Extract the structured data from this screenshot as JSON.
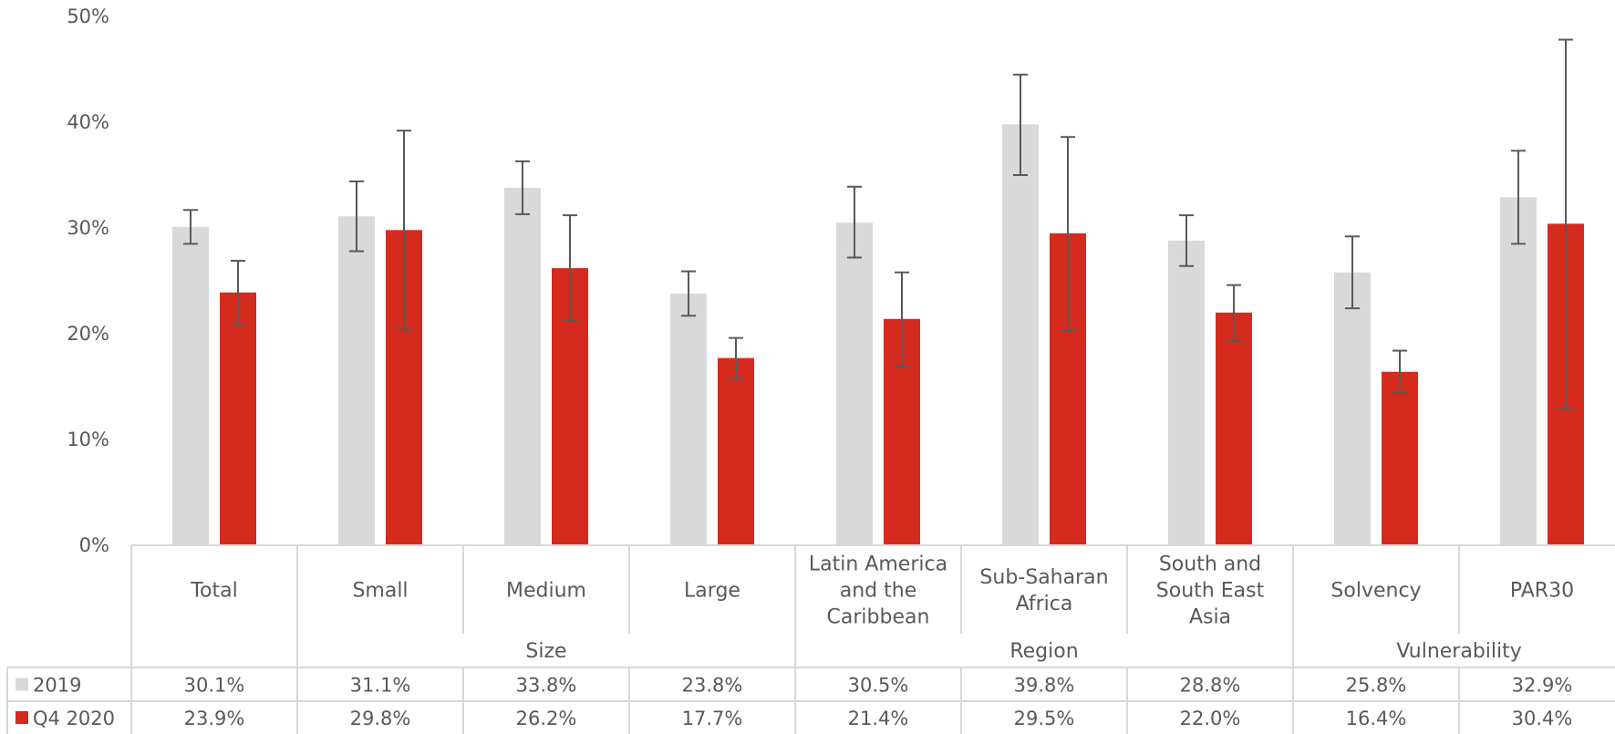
{
  "chart_data": {
    "type": "bar",
    "ylim": [
      0,
      50
    ],
    "yticks": [
      "0%",
      "10%",
      "20%",
      "30%",
      "40%",
      "50%"
    ],
    "categories": [
      [
        "Total"
      ],
      [
        "Small"
      ],
      [
        "Medium"
      ],
      [
        "Large"
      ],
      [
        "Latin America",
        "and the",
        "Caribbean"
      ],
      [
        "Sub-Saharan",
        "Africa"
      ],
      [
        "South and",
        "South East",
        "Asia"
      ],
      [
        "Solvency"
      ],
      [
        "PAR30"
      ]
    ],
    "groups": [
      {
        "label": "Size",
        "start": 1,
        "end": 3
      },
      {
        "label": "Region",
        "start": 4,
        "end": 6
      },
      {
        "label": "Vulnerability",
        "start": 7,
        "end": 8
      }
    ],
    "series": [
      {
        "name": "2019",
        "color": "#d9d9d9",
        "values": [
          30.1,
          31.1,
          33.8,
          23.8,
          30.5,
          39.8,
          28.8,
          25.8,
          32.9
        ],
        "labels": [
          "30.1%",
          "31.1%",
          "33.8%",
          "23.8%",
          "30.5%",
          "39.8%",
          "28.8%",
          "25.8%",
          "32.9%"
        ],
        "err_low": [
          28.5,
          27.8,
          31.3,
          21.7,
          27.2,
          35.0,
          26.4,
          22.4,
          28.5
        ],
        "err_high": [
          31.7,
          34.4,
          36.3,
          25.9,
          33.9,
          44.5,
          31.2,
          29.2,
          37.3
        ]
      },
      {
        "name": "Q4 2020",
        "color": "#d52b1e",
        "values": [
          23.9,
          29.8,
          26.2,
          17.7,
          21.4,
          29.5,
          22.0,
          16.4,
          30.4
        ],
        "labels": [
          "23.9%",
          "29.8%",
          "26.2%",
          "17.7%",
          "21.4%",
          "29.5%",
          "22.0%",
          "16.4%",
          "30.4%"
        ],
        "err_low": [
          20.9,
          20.4,
          21.2,
          15.7,
          16.9,
          20.3,
          19.3,
          14.4,
          12.9
        ],
        "err_high": [
          26.9,
          39.2,
          31.2,
          19.6,
          25.8,
          38.6,
          24.6,
          18.4,
          47.8
        ]
      }
    ],
    "grid": false,
    "legend": "table-left"
  }
}
